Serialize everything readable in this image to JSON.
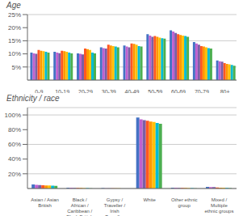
{
  "chart_data": [
    {
      "type": "bar",
      "title": "Age",
      "categories": [
        "0-9",
        "10-19",
        "20-29",
        "30-39",
        "40-49",
        "50-59",
        "60-69",
        "70-79",
        "80+"
      ],
      "series": [
        {
          "color": "#4472C4",
          "values": [
            10.5,
            10.8,
            10.2,
            12.5,
            13.2,
            17.5,
            19.0,
            14.5,
            7.5
          ]
        },
        {
          "color": "#C060D0",
          "values": [
            10.2,
            10.5,
            10.0,
            12.2,
            12.8,
            17.0,
            18.5,
            14.0,
            7.2
          ]
        },
        {
          "color": "#7B5EA7",
          "values": [
            10.0,
            10.3,
            9.8,
            12.0,
            12.5,
            16.5,
            18.0,
            13.5,
            7.0
          ]
        },
        {
          "color": "#FF5722",
          "values": [
            11.5,
            11.2,
            12.0,
            13.5,
            14.0,
            16.8,
            17.5,
            13.0,
            6.5
          ]
        },
        {
          "color": "#FF9800",
          "values": [
            11.2,
            11.0,
            11.8,
            13.2,
            13.8,
            16.5,
            17.2,
            12.8,
            6.2
          ]
        },
        {
          "color": "#FFC107",
          "values": [
            11.0,
            10.8,
            11.5,
            13.0,
            13.5,
            16.2,
            17.0,
            12.5,
            6.0
          ]
        },
        {
          "color": "#00BCD4",
          "values": [
            10.8,
            10.5,
            10.5,
            12.8,
            13.0,
            16.0,
            16.8,
            12.2,
            5.8
          ]
        },
        {
          "color": "#4CAF50",
          "values": [
            10.5,
            10.2,
            10.2,
            12.5,
            12.8,
            15.8,
            16.5,
            12.0,
            5.5
          ]
        }
      ],
      "ylim": [
        0,
        25
      ],
      "yticks": [
        {
          "value": 5,
          "label": "5%"
        },
        {
          "value": 10,
          "label": "10%"
        },
        {
          "value": 15,
          "label": "15%"
        },
        {
          "value": 20,
          "label": "20%"
        },
        {
          "value": 25,
          "label": "25%"
        }
      ],
      "grid": true
    },
    {
      "type": "bar",
      "title": "Ethnicity / race",
      "categories": [
        "Asian / Asian\nBritish",
        "Black /\nAfrican /\nCaribbean /\nBlack British",
        "Gypsy /\nTraveller /\nIrish\nTraveller",
        "White",
        "Other ethnic\ngroup",
        "Mixed /\nMultiple\nethnic groups"
      ],
      "series": [
        {
          "color": "#4472C4",
          "values": [
            5.5,
            1.2,
            0.5,
            96.5,
            1.2,
            2.2
          ]
        },
        {
          "color": "#C060D0",
          "values": [
            5.0,
            1.0,
            0.4,
            94.0,
            1.0,
            2.0
          ]
        },
        {
          "color": "#7B5EA7",
          "values": [
            4.8,
            0.9,
            0.3,
            93.0,
            0.9,
            1.8
          ]
        },
        {
          "color": "#FF5722",
          "values": [
            4.5,
            0.8,
            0.3,
            92.0,
            0.8,
            1.5
          ]
        },
        {
          "color": "#FF9800",
          "values": [
            4.2,
            0.7,
            0.2,
            91.0,
            0.7,
            1.2
          ]
        },
        {
          "color": "#FFC107",
          "values": [
            4.0,
            0.6,
            0.2,
            90.5,
            0.6,
            1.0
          ]
        },
        {
          "color": "#00BCD4",
          "values": [
            3.8,
            0.5,
            0.1,
            89.0,
            0.5,
            0.8
          ]
        },
        {
          "color": "#4CAF50",
          "values": [
            3.5,
            0.4,
            0.1,
            88.0,
            0.4,
            0.6
          ]
        }
      ],
      "ylim": [
        0,
        110
      ],
      "yticks": [
        {
          "value": 20,
          "label": "20%"
        },
        {
          "value": 40,
          "label": "40%"
        },
        {
          "value": 60,
          "label": "60%"
        },
        {
          "value": 80,
          "label": "80%"
        },
        {
          "value": 100,
          "label": "100%"
        }
      ],
      "grid": true
    }
  ]
}
